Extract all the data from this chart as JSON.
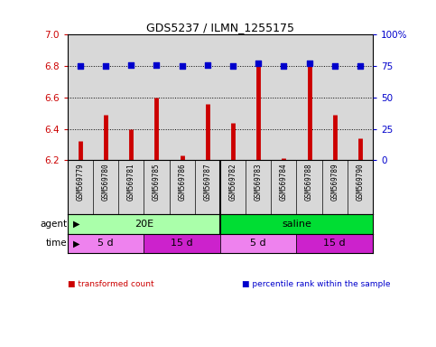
{
  "title": "GDS5237 / ILMN_1255175",
  "samples": [
    "GSM569779",
    "GSM569780",
    "GSM569781",
    "GSM569785",
    "GSM569786",
    "GSM569787",
    "GSM569782",
    "GSM569783",
    "GSM569784",
    "GSM569788",
    "GSM569789",
    "GSM569790"
  ],
  "transformed_counts": [
    6.32,
    6.49,
    6.4,
    6.6,
    6.23,
    6.56,
    6.44,
    6.8,
    6.21,
    6.8,
    6.49,
    6.34
  ],
  "percentile_ranks": [
    75,
    75,
    76,
    76,
    75,
    76,
    75,
    77,
    75,
    77,
    75,
    75
  ],
  "ylim_left": [
    6.2,
    7.0
  ],
  "ylim_right": [
    0,
    100
  ],
  "yticks_left": [
    6.2,
    6.4,
    6.6,
    6.8,
    7.0
  ],
  "yticks_right": [
    0,
    25,
    50,
    75,
    100
  ],
  "ytick_labels_right": [
    "0",
    "25",
    "50",
    "75",
    "100%"
  ],
  "bar_color": "#cc0000",
  "dot_color": "#0000cc",
  "agent_groups": [
    {
      "label": "20E",
      "start": 0,
      "end": 5,
      "color": "#aaffaa"
    },
    {
      "label": "saline",
      "start": 6,
      "end": 11,
      "color": "#00dd33"
    }
  ],
  "time_groups": [
    {
      "label": "5 d",
      "start": 0,
      "end": 2,
      "color": "#ee82ee"
    },
    {
      "label": "15 d",
      "start": 3,
      "end": 5,
      "color": "#cc22cc"
    },
    {
      "label": "5 d",
      "start": 6,
      "end": 8,
      "color": "#ee82ee"
    },
    {
      "label": "15 d",
      "start": 9,
      "end": 11,
      "color": "#cc22cc"
    }
  ],
  "legend_items": [
    {
      "label": "transformed count",
      "color": "#cc0000"
    },
    {
      "label": "percentile rank within the sample",
      "color": "#0000cc"
    }
  ],
  "plot_bg_color": "#d8d8d8",
  "grid_color": "#000000",
  "tick_color_left": "#cc0000",
  "tick_color_right": "#0000cc",
  "agent_label": "agent",
  "time_label": "time"
}
